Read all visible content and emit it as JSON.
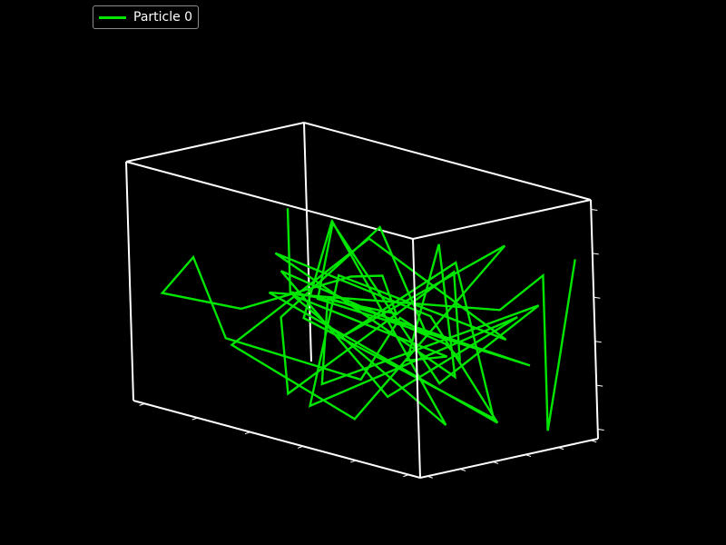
{
  "chart_data": {
    "type": "line",
    "projection": "3d",
    "axis_tick_labels_visible": false,
    "grid": false,
    "legend_placement": "top-left",
    "colors": {
      "background": "#000000",
      "box": "#ffffff",
      "series": "#00e600"
    },
    "series": [
      {
        "name": "Particle 0",
        "xyz": [
          [
            0.5,
            0.1,
            0.95
          ],
          [
            0.5,
            0.1,
            0.6
          ],
          [
            0.65,
            0.45,
            0.5
          ],
          [
            0.7,
            0.3,
            0.7
          ],
          [
            0.4,
            0.6,
            0.55
          ],
          [
            0.2,
            0.3,
            0.4
          ],
          [
            0.05,
            0.1,
            0.45
          ],
          [
            0.1,
            0.2,
            0.6
          ],
          [
            0.3,
            0.05,
            0.35
          ],
          [
            0.55,
            0.4,
            0.2
          ],
          [
            0.6,
            0.55,
            0.45
          ],
          [
            0.85,
            0.3,
            0.5
          ],
          [
            0.35,
            0.85,
            0.7
          ],
          [
            0.15,
            0.6,
            0.3
          ],
          [
            0.45,
            0.15,
            0.15
          ],
          [
            0.7,
            0.7,
            0.65
          ],
          [
            0.9,
            0.4,
            0.4
          ],
          [
            0.6,
            0.8,
            0.3
          ],
          [
            0.25,
            0.45,
            0.55
          ],
          [
            0.8,
            0.15,
            0.25
          ],
          [
            0.95,
            0.65,
            0.55
          ],
          [
            0.4,
            0.35,
            0.05
          ],
          [
            0.2,
            0.85,
            0.45
          ],
          [
            0.75,
            0.9,
            0.35
          ],
          [
            0.5,
            0.55,
            0.75
          ],
          [
            0.1,
            0.4,
            0.2
          ],
          [
            0.65,
            0.2,
            0.1
          ],
          [
            0.85,
            0.75,
            0.8
          ],
          [
            0.3,
            0.7,
            0.25
          ],
          [
            0.55,
            0.95,
            0.6
          ],
          [
            0.95,
            0.5,
            0.15
          ],
          [
            0.45,
            0.25,
            0.45
          ],
          [
            0.15,
            0.9,
            0.65
          ],
          [
            0.7,
            0.6,
            0.2
          ],
          [
            0.9,
            0.85,
            0.55
          ],
          [
            0.35,
            0.5,
            0.1
          ],
          [
            0.6,
            0.15,
            0.6
          ],
          [
            0.8,
            0.95,
            0.25
          ],
          [
            0.25,
            0.65,
            0.4
          ],
          [
            0.5,
            0.35,
            0.85
          ],
          [
            0.75,
            0.55,
            0.05
          ],
          [
            0.1,
            0.75,
            0.35
          ],
          [
            0.95,
            0.25,
            0.45
          ],
          [
            0.4,
            0.9,
            0.15
          ],
          [
            0.65,
            0.7,
            0.75
          ],
          [
            0.85,
            0.45,
            0.3
          ],
          [
            0.2,
            0.5,
            0.6
          ],
          [
            0.55,
            0.8,
            0.4
          ],
          [
            0.9,
            0.6,
            0.1
          ],
          [
            0.3,
            0.3,
            0.5
          ],
          [
            0.7,
            0.95,
            0.45
          ],
          [
            0.95,
            0.8,
            0.7
          ],
          [
            0.95,
            0.8,
            0.05
          ],
          [
            0.92,
            0.92,
            0.3
          ],
          [
            0.97,
            0.95,
            0.75
          ]
        ]
      }
    ]
  }
}
